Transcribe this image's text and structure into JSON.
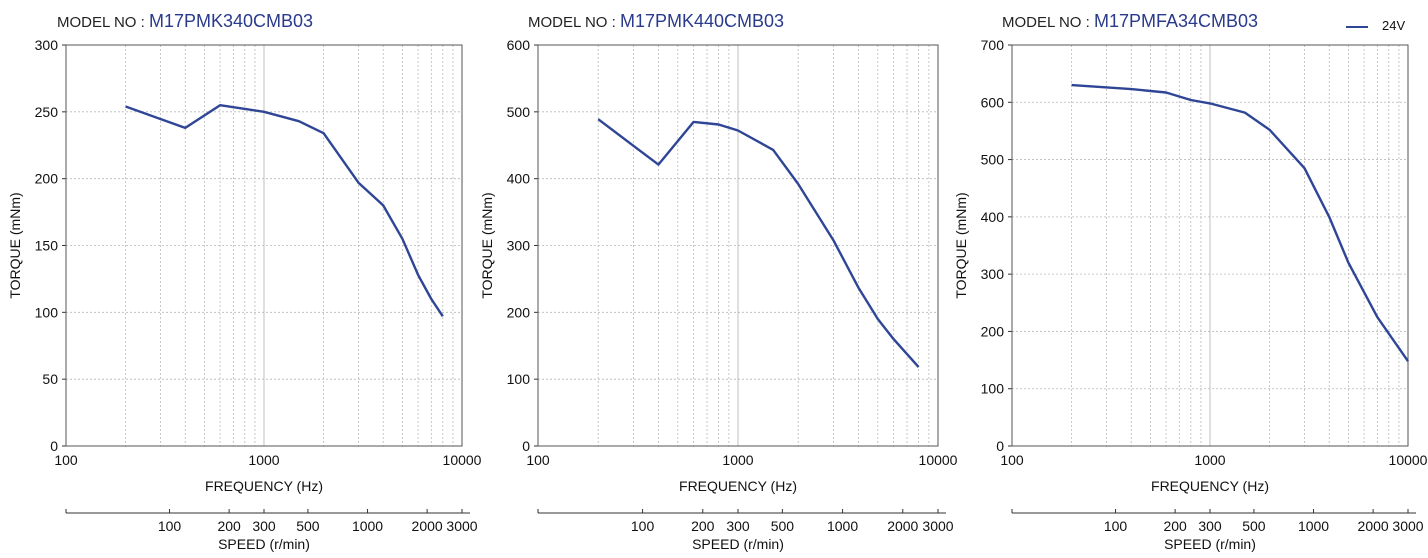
{
  "legend": {
    "label": "24V",
    "color": "#2f4596"
  },
  "chart_data": [
    {
      "type": "line",
      "model_label": "MODEL NO : ",
      "model_number": "M17PMK340CMB03",
      "xlabel": "FREQUENCY (Hz)",
      "ylabel": "TORQUE (mNm)",
      "x2label": "SPEED (r/min)",
      "x_scale": "log",
      "xlim": [
        100,
        10000
      ],
      "ylim": [
        0,
        300
      ],
      "y_ticks": [
        0,
        50,
        100,
        150,
        200,
        250,
        300
      ],
      "x_tick_labels": [
        "100",
        "1000",
        "10000"
      ],
      "x2_ticks": [
        "100",
        "200",
        "300",
        "500",
        "1000",
        "2000",
        "3000"
      ],
      "grid": true,
      "series": [
        {
          "name": "24V",
          "x": [
            200,
            400,
            600,
            1000,
            1500,
            2000,
            3000,
            4000,
            5000,
            6000,
            7000,
            8000
          ],
          "y": [
            254,
            238,
            255,
            250,
            243,
            234,
            197,
            180,
            155,
            128,
            110,
            97
          ]
        }
      ]
    },
    {
      "type": "line",
      "model_label": "MODEL NO : ",
      "model_number": "M17PMK440CMB03",
      "xlabel": "FREQUENCY (Hz)",
      "ylabel": "TORQUE (mNm)",
      "x2label": "SPEED (r/min)",
      "x_scale": "log",
      "xlim": [
        100,
        10000
      ],
      "ylim": [
        0,
        600
      ],
      "y_ticks": [
        0,
        100,
        200,
        300,
        400,
        500,
        600
      ],
      "x_tick_labels": [
        "100",
        "1000",
        "10000"
      ],
      "x2_ticks": [
        "100",
        "200",
        "300",
        "500",
        "1000",
        "2000",
        "3000"
      ],
      "grid": true,
      "series": [
        {
          "name": "24V",
          "x": [
            200,
            400,
            600,
            800,
            1000,
            1500,
            2000,
            3000,
            4000,
            5000,
            6000,
            8000
          ],
          "y": [
            489,
            421,
            485,
            481,
            472,
            443,
            392,
            308,
            237,
            190,
            160,
            118
          ]
        }
      ]
    },
    {
      "type": "line",
      "model_label": "MODEL NO : ",
      "model_number": "M17PMFA34CMB03",
      "xlabel": "FREQUENCY (Hz)",
      "ylabel": "TORQUE (mNm)",
      "x2label": "SPEED (r/min)",
      "x_scale": "log",
      "xlim": [
        100,
        10000
      ],
      "ylim": [
        0,
        700
      ],
      "y_ticks": [
        0,
        100,
        200,
        300,
        400,
        500,
        600,
        700
      ],
      "x_tick_labels": [
        "100",
        "1000",
        "10000"
      ],
      "x2_ticks": [
        "100",
        "200",
        "300",
        "500",
        "1000",
        "2000",
        "3000"
      ],
      "grid": true,
      "series": [
        {
          "name": "24V",
          "x": [
            200,
            400,
            600,
            800,
            1000,
            1500,
            2000,
            3000,
            4000,
            5000,
            7000,
            10000
          ],
          "y": [
            630,
            623,
            617,
            604,
            598,
            582,
            552,
            485,
            400,
            320,
            225,
            148
          ]
        }
      ]
    }
  ]
}
